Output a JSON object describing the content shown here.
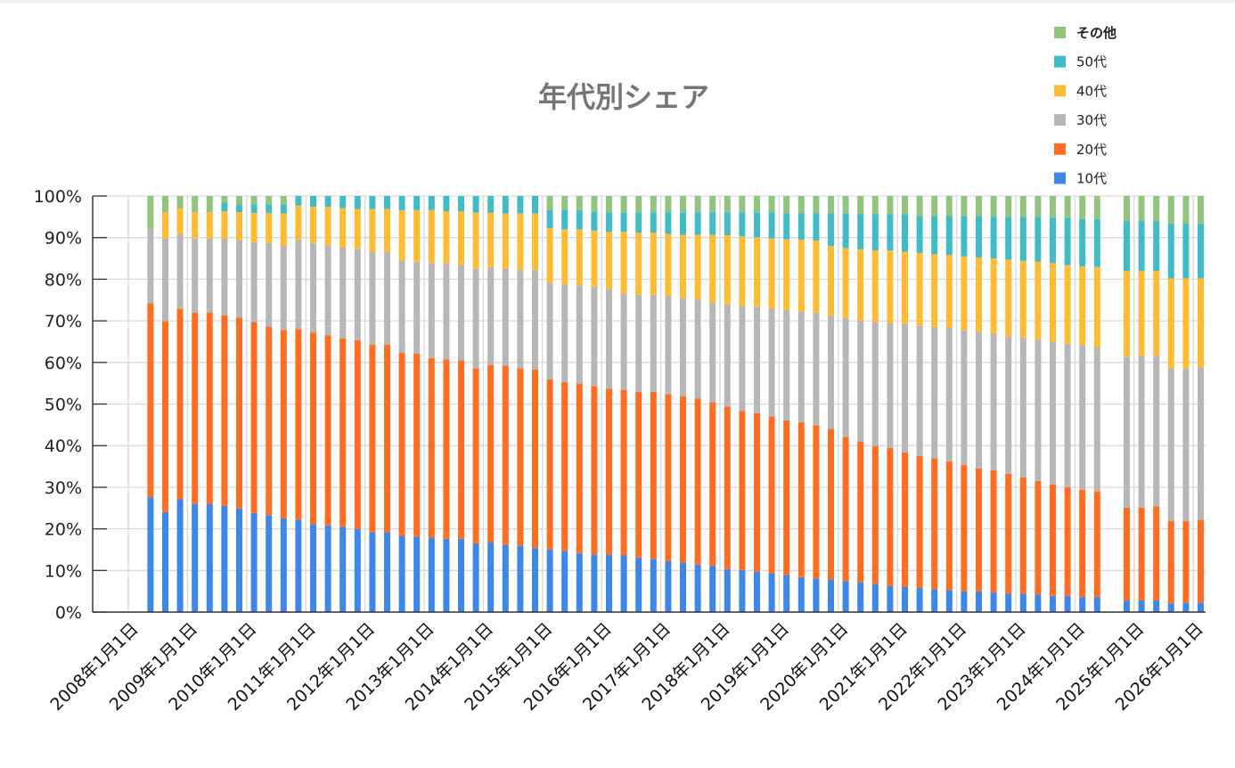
{
  "chart_data": {
    "type": "bar",
    "stacked": true,
    "title": "年代別シェア",
    "xlabel": "",
    "ylabel": "",
    "ylim": [
      0,
      100
    ],
    "grid": true,
    "legend_position": "top-right",
    "y_tick_values": [
      0,
      10,
      20,
      30,
      40,
      50,
      60,
      70,
      80,
      90,
      100
    ],
    "y_tick_labels": [
      "0%",
      "10%",
      "20%",
      "30%",
      "40%",
      "50%",
      "60%",
      "70%",
      "80%",
      "90%",
      "100%"
    ],
    "x_tick_years": [
      2008,
      2009,
      2010,
      2011,
      2012,
      2013,
      2014,
      2015,
      2016,
      2017,
      2018,
      2019,
      2020,
      2021,
      2022,
      2023,
      2024,
      2025,
      2026
    ],
    "x_tick_labels": [
      "2008年1月1日",
      "2009年1月1日",
      "2010年1月1日",
      "2011年1月1日",
      "2012年1月1日",
      "2013年1月1日",
      "2014年1月1日",
      "2015年1月1日",
      "2016年1月1日",
      "2017年1月1日",
      "2018年1月1日",
      "2019年1月1日",
      "2020年1月1日",
      "2021年1月1日",
      "2022年1月1日",
      "2023年1月1日",
      "2024年1月1日",
      "2025年1月1日",
      "2026年1月1日"
    ],
    "x": [
      "2008-05",
      "2008-08",
      "2008-11",
      "2009-02",
      "2009-05",
      "2009-08",
      "2009-11",
      "2010-02",
      "2010-05",
      "2010-08",
      "2010-11",
      "2011-02",
      "2011-05",
      "2011-08",
      "2011-11",
      "2012-02",
      "2012-05",
      "2012-08",
      "2012-11",
      "2013-02",
      "2013-05",
      "2013-08",
      "2013-11",
      "2014-02",
      "2014-05",
      "2014-08",
      "2014-11",
      "2015-02",
      "2015-05",
      "2015-08",
      "2015-11",
      "2016-02",
      "2016-05",
      "2016-08",
      "2016-11",
      "2017-02",
      "2017-05",
      "2017-08",
      "2017-11",
      "2018-02",
      "2018-05",
      "2018-08",
      "2018-11",
      "2019-02",
      "2019-05",
      "2019-08",
      "2019-11",
      "2020-02",
      "2020-05",
      "2020-08",
      "2020-11",
      "2021-02",
      "2021-05",
      "2021-08",
      "2021-11",
      "2022-02",
      "2022-05",
      "2022-08",
      "2022-11",
      "2023-02",
      "2023-05",
      "2023-08",
      "2023-11",
      "2024-02",
      "2024-05",
      "2024-11",
      "2025-02",
      "2025-05",
      "2025-08",
      "2025-11",
      "2026-02"
    ],
    "series": [
      {
        "name": "10代",
        "color": "#3d87e9",
        "values": [
          27.6,
          24.0,
          27.1,
          26.0,
          26.0,
          25.5,
          24.9,
          23.8,
          23.3,
          22.5,
          22.2,
          21.1,
          20.8,
          20.5,
          20.0,
          19.2,
          19.2,
          18.3,
          18.1,
          17.9,
          17.6,
          17.6,
          16.5,
          16.8,
          16.2,
          16.0,
          15.4,
          15.0,
          14.7,
          14.1,
          13.8,
          13.8,
          13.6,
          13.1,
          12.8,
          12.2,
          11.9,
          11.4,
          11.1,
          10.3,
          10.1,
          9.8,
          9.3,
          8.9,
          8.4,
          8.1,
          7.8,
          7.4,
          7.1,
          6.8,
          6.3,
          6.0,
          5.8,
          5.5,
          5.3,
          5.0,
          5.0,
          4.7,
          4.4,
          4.4,
          4.2,
          3.9,
          3.9,
          3.6,
          3.6,
          2.8,
          2.8,
          2.8,
          2.1,
          2.3,
          2.3
        ]
      },
      {
        "name": "20代",
        "color": "#ff6d22",
        "values": [
          46.6,
          45.9,
          45.8,
          46.0,
          46.0,
          45.8,
          45.9,
          45.9,
          45.3,
          45.3,
          45.8,
          46.1,
          45.7,
          45.3,
          45.3,
          45.1,
          45.1,
          44.0,
          44.0,
          43.2,
          43.1,
          42.9,
          42.1,
          42.6,
          43.0,
          42.6,
          42.9,
          40.9,
          40.6,
          40.8,
          40.5,
          39.9,
          39.8,
          39.8,
          40.1,
          40.2,
          40.0,
          39.9,
          39.3,
          39.1,
          38.2,
          38.0,
          37.7,
          37.2,
          37.2,
          36.8,
          36.2,
          34.7,
          33.9,
          33.1,
          33.1,
          32.4,
          31.7,
          31.5,
          30.9,
          30.4,
          29.5,
          29.4,
          28.8,
          28.0,
          27.3,
          26.8,
          26.1,
          25.8,
          25.4,
          22.3,
          22.3,
          22.6,
          19.8,
          19.6,
          19.9
        ]
      },
      {
        "name": "30代",
        "color": "#b7b7b7",
        "values": [
          17.8,
          19.9,
          18.0,
          17.8,
          17.8,
          18.5,
          18.5,
          19.2,
          20.1,
          20.1,
          21.5,
          21.5,
          21.7,
          21.8,
          22.1,
          22.3,
          22.3,
          22.2,
          22.1,
          22.8,
          23.2,
          22.9,
          23.9,
          23.5,
          23.3,
          23.7,
          24.0,
          23.2,
          23.4,
          23.6,
          23.9,
          24.0,
          23.1,
          23.4,
          23.4,
          23.6,
          23.6,
          23.9,
          24.0,
          24.5,
          25.3,
          25.6,
          25.9,
          26.5,
          26.6,
          27.1,
          27.2,
          28.6,
          29.1,
          29.8,
          30.1,
          30.9,
          31.3,
          31.5,
          32.1,
          32.3,
          32.9,
          32.8,
          33.1,
          33.6,
          34.0,
          34.3,
          34.5,
          34.8,
          34.6,
          36.2,
          36.5,
          36.2,
          36.7,
          36.7,
          36.6
        ]
      },
      {
        "name": "40代",
        "color": "#ffbb33",
        "values": [
          0,
          6.3,
          6.1,
          6.3,
          6.3,
          6.5,
          6.8,
          7.0,
          7.2,
          7.9,
          8.2,
          8.7,
          9.2,
          9.5,
          9.5,
          10.3,
          10.3,
          12.1,
          12.4,
          12.7,
          12.4,
          12.9,
          13.5,
          13.1,
          13.3,
          13.5,
          13.5,
          13.2,
          13.3,
          13.5,
          13.5,
          13.7,
          14.9,
          14.9,
          14.9,
          14.9,
          15.2,
          15.5,
          16.3,
          16.7,
          16.7,
          16.7,
          16.9,
          17.0,
          17.3,
          17.3,
          16.8,
          16.8,
          17.1,
          17.2,
          17.4,
          17.3,
          17.5,
          17.5,
          17.5,
          17.8,
          17.8,
          18.1,
          18.4,
          18.4,
          18.7,
          18.9,
          18.9,
          18.9,
          19.3,
          20.7,
          20.4,
          20.4,
          21.6,
          21.6,
          21.4
        ]
      },
      {
        "name": "50代",
        "color": "#41bcc7",
        "values": [
          0,
          0,
          0,
          0,
          0,
          2.1,
          1.9,
          2.1,
          2.1,
          2.2,
          2.3,
          2.6,
          2.6,
          2.9,
          3.1,
          3.1,
          3.1,
          3.4,
          3.4,
          3.4,
          3.7,
          3.7,
          4.0,
          4.0,
          4.2,
          4.2,
          4.2,
          4.3,
          4.6,
          4.6,
          4.6,
          4.7,
          4.7,
          4.9,
          4.9,
          5.2,
          5.4,
          5.4,
          5.4,
          5.5,
          5.8,
          6.0,
          6.3,
          6.3,
          6.4,
          6.6,
          7.9,
          8.4,
          8.5,
          8.8,
          8.7,
          9.0,
          8.9,
          9.2,
          9.4,
          9.7,
          10.0,
          10.0,
          10.3,
          10.6,
          10.8,
          10.9,
          11.4,
          11.4,
          11.6,
          11.9,
          11.9,
          11.9,
          13.2,
          13.2,
          13.2
        ]
      },
      {
        "name": "その他",
        "color": "#93c47d",
        "values": [
          8.0,
          3.9,
          3.0,
          3.9,
          3.9,
          1.6,
          2.0,
          2.0,
          2.0,
          2.0,
          0,
          0,
          0,
          0,
          0,
          0,
          0,
          0,
          0,
          0,
          0,
          0,
          0,
          0,
          0,
          0,
          0,
          3.4,
          3.4,
          3.4,
          3.7,
          3.9,
          3.9,
          3.9,
          3.9,
          3.9,
          3.9,
          3.9,
          3.9,
          3.9,
          3.9,
          3.9,
          3.9,
          4.1,
          4.1,
          4.1,
          4.1,
          4.1,
          4.3,
          4.3,
          4.4,
          4.4,
          4.8,
          4.8,
          4.8,
          4.8,
          4.8,
          5.0,
          5.0,
          5.0,
          5.0,
          5.2,
          5.2,
          5.5,
          5.5,
          6.1,
          6.1,
          6.1,
          6.6,
          6.6,
          6.6
        ]
      }
    ]
  }
}
